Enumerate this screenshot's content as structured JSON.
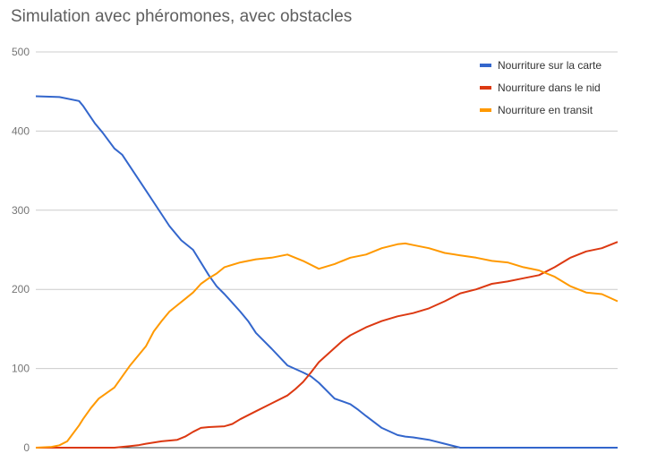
{
  "chart_data": {
    "type": "line",
    "title": "Simulation avec phéromones, avec obstacles",
    "xlabel": "",
    "ylabel": "",
    "ylim": [
      0,
      500
    ],
    "xlim": [
      0,
      740
    ],
    "y_ticks": [
      0,
      100,
      200,
      300,
      400,
      500
    ],
    "grid": true,
    "legend_position": "top-right",
    "series": [
      {
        "name": "Nourriture sur la carte",
        "color": "#3366cc",
        "x": [
          0,
          30,
          55,
          60,
          75,
          85,
          100,
          110,
          130,
          140,
          150,
          170,
          185,
          200,
          220,
          230,
          240,
          260,
          270,
          280,
          300,
          320,
          340,
          350,
          360,
          380,
          400,
          410,
          420,
          440,
          460,
          470,
          480,
          500,
          520,
          540,
          550,
          560,
          580,
          600,
          620,
          640,
          660,
          680,
          700,
          720,
          740
        ],
        "values": [
          444,
          443,
          438,
          432,
          410,
          398,
          378,
          370,
          340,
          325,
          310,
          280,
          262,
          250,
          218,
          204,
          194,
          172,
          160,
          145,
          125,
          104,
          95,
          90,
          82,
          62,
          55,
          48,
          40,
          25,
          16,
          14,
          13,
          10,
          5,
          0,
          0,
          0,
          0,
          0,
          0,
          0,
          0,
          0,
          0,
          0,
          0
        ]
      },
      {
        "name": "Nourriture dans le nid",
        "color": "#dc3912",
        "x": [
          0,
          100,
          110,
          120,
          130,
          140,
          160,
          180,
          190,
          200,
          210,
          220,
          240,
          250,
          260,
          280,
          300,
          320,
          330,
          340,
          350,
          360,
          380,
          390,
          400,
          420,
          440,
          460,
          480,
          500,
          520,
          540,
          560,
          580,
          600,
          620,
          640,
          660,
          680,
          700,
          720,
          740
        ],
        "values": [
          0,
          0,
          1,
          2,
          3,
          5,
          8,
          10,
          14,
          20,
          25,
          26,
          27,
          30,
          36,
          46,
          56,
          66,
          74,
          83,
          95,
          108,
          126,
          135,
          142,
          152,
          160,
          166,
          170,
          176,
          185,
          195,
          200,
          207,
          210,
          214,
          218,
          228,
          240,
          248,
          252,
          260
        ]
      },
      {
        "name": "Nourriture en transit",
        "color": "#ff9900",
        "x": [
          0,
          20,
          30,
          40,
          55,
          60,
          70,
          80,
          100,
          110,
          120,
          140,
          150,
          160,
          170,
          180,
          190,
          200,
          210,
          220,
          230,
          240,
          260,
          280,
          300,
          320,
          340,
          360,
          380,
          400,
          420,
          440,
          460,
          470,
          480,
          500,
          520,
          540,
          560,
          580,
          600,
          620,
          640,
          660,
          680,
          700,
          720,
          740
        ],
        "values": [
          0,
          1,
          3,
          8,
          28,
          36,
          50,
          62,
          76,
          90,
          104,
          128,
          147,
          160,
          172,
          180,
          188,
          196,
          207,
          214,
          220,
          228,
          234,
          238,
          240,
          244,
          236,
          226,
          232,
          240,
          244,
          252,
          257,
          258,
          256,
          252,
          246,
          243,
          240,
          236,
          234,
          228,
          224,
          216,
          204,
          196,
          194,
          185
        ]
      }
    ]
  }
}
